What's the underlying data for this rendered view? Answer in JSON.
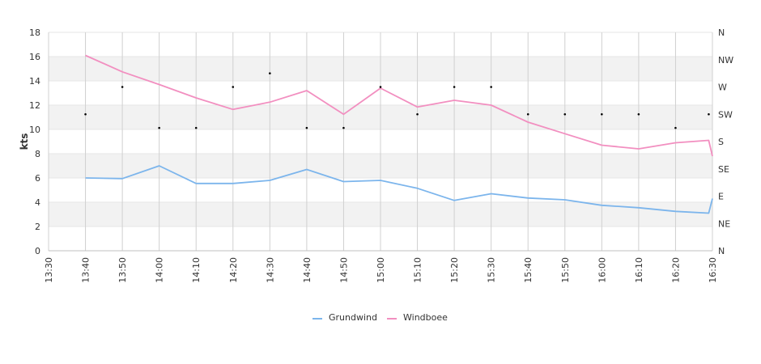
{
  "chart_data": {
    "type": "line",
    "ylabel": "kts",
    "ylim": [
      0,
      18
    ],
    "y_ticks": [
      "0",
      "2",
      "4",
      "6",
      "8",
      "10",
      "12",
      "14",
      "16",
      "18"
    ],
    "x_tick_labels": [
      "13:30",
      "13:40",
      "13:50",
      "14:00",
      "14:10",
      "14:20",
      "14:30",
      "14:40",
      "14:50",
      "15:00",
      "15:10",
      "15:20",
      "15:30",
      "15:40",
      "15:50",
      "16:00",
      "16:10",
      "16:20",
      "16:30"
    ],
    "x": [
      "13:40",
      "13:50",
      "14:00",
      "14:10",
      "14:20",
      "14:30",
      "14:40",
      "14:50",
      "15:00",
      "15:10",
      "15:20",
      "15:30",
      "15:40",
      "15:50",
      "16:00",
      "16:10",
      "16:20",
      "16:29",
      "16:30"
    ],
    "direction_axis": {
      "labels": [
        "N",
        "NE",
        "E",
        "SE",
        "S",
        "SW",
        "W",
        "NW",
        "N"
      ],
      "range": [
        0,
        360
      ]
    },
    "series": [
      {
        "name": "Grundwind",
        "color": "#7cb5ec",
        "values": [
          6.0,
          5.95,
          7.0,
          5.55,
          5.55,
          5.8,
          6.7,
          5.7,
          5.8,
          5.15,
          4.15,
          4.7,
          4.35,
          4.2,
          3.75,
          3.55,
          3.25,
          3.1,
          4.3
        ]
      },
      {
        "name": "Windboee",
        "color": "#f28fc0",
        "values": [
          16.1,
          14.75,
          13.7,
          12.6,
          11.65,
          12.25,
          13.2,
          11.25,
          13.4,
          11.85,
          12.4,
          12.0,
          10.6,
          9.65,
          8.7,
          8.4,
          8.9,
          9.1,
          7.8
        ]
      }
    ],
    "direction_points": {
      "x": [
        "13:40",
        "13:50",
        "14:00",
        "14:10",
        "14:20",
        "14:30",
        "14:40",
        "14:50",
        "15:00",
        "15:10",
        "15:20",
        "15:30",
        "15:40",
        "15:50",
        "16:00",
        "16:10",
        "16:20",
        "16:29"
      ],
      "values": [
        225,
        270,
        202.5,
        202.5,
        270,
        292.5,
        202.5,
        202.5,
        270,
        225,
        270,
        270,
        225,
        225,
        225,
        225,
        202.5,
        225
      ]
    },
    "legend_position": "bottom-center",
    "grid": true
  }
}
